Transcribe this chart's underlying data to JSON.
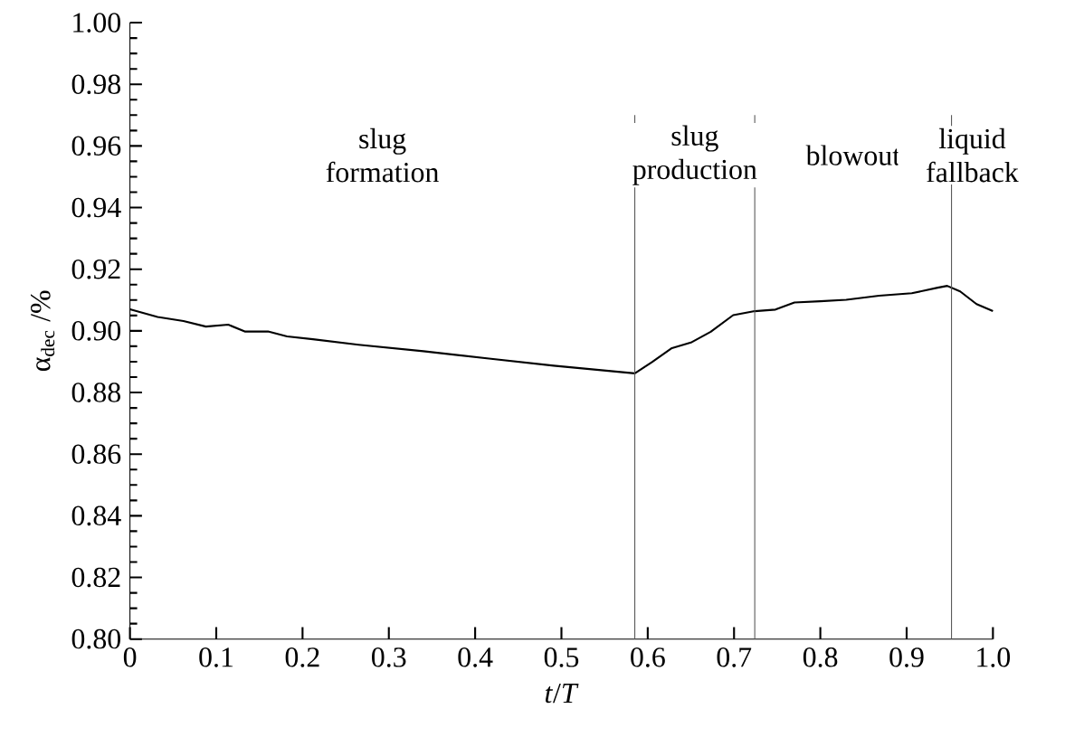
{
  "chart_data": {
    "type": "line",
    "xlabel": "*t*/*T*",
    "ylabel": "α$_{dec}$ /%",
    "x": [
      0,
      0.032,
      0.062,
      0.088,
      0.114,
      0.133,
      0.16,
      0.182,
      0.212,
      0.265,
      0.34,
      0.416,
      0.491,
      0.585,
      0.605,
      0.628,
      0.65,
      0.673,
      0.699,
      0.724,
      0.748,
      0.77,
      0.8,
      0.83,
      0.868,
      0.906,
      0.936,
      0.947,
      0.962,
      0.981,
      1.0
    ],
    "values": [
      0.907,
      0.9045,
      0.9032,
      0.9014,
      0.902,
      0.8998,
      0.8998,
      0.8982,
      0.8973,
      0.8955,
      0.8934,
      0.891,
      0.8887,
      0.8862,
      0.8899,
      0.8944,
      0.8962,
      0.8997,
      0.9051,
      0.9064,
      0.9069,
      0.9092,
      0.9096,
      0.9101,
      0.9114,
      0.9122,
      0.914,
      0.9146,
      0.9128,
      0.9087,
      0.9064
    ],
    "color": "#000000",
    "xlim": [
      0,
      1.0
    ],
    "xticks": [
      {
        "value": 0,
        "label": "0"
      },
      0.1,
      0.2,
      0.3,
      0.4,
      0.5,
      0.6,
      0.7,
      0.8,
      0.9,
      {
        "value": 1.0,
        "label": "1.0"
      }
    ],
    "ylim": [
      0.8,
      1.0
    ],
    "yticks": [
      {
        "value": 0.8,
        "label": "0.80"
      },
      0.82,
      0.84,
      0.86,
      0.88,
      {
        "value": 0.9,
        "label": "0.90"
      },
      0.92,
      0.94,
      0.96,
      0.98,
      {
        "value": 1.0,
        "label": "1.00"
      }
    ],
    "ref_lines": [
      {
        "axis": "x",
        "value": 0.585,
        "color": "#555555"
      },
      {
        "axis": "x",
        "value": 0.724,
        "color": "#555555"
      },
      {
        "axis": "x",
        "value": 0.952,
        "color": "#555555"
      }
    ],
    "annotations": [
      "slug formation",
      "slug production",
      "blowout",
      "liquid fallback"
    ],
    "grid": false,
    "marker": "none",
    "line_style": "solid"
  }
}
